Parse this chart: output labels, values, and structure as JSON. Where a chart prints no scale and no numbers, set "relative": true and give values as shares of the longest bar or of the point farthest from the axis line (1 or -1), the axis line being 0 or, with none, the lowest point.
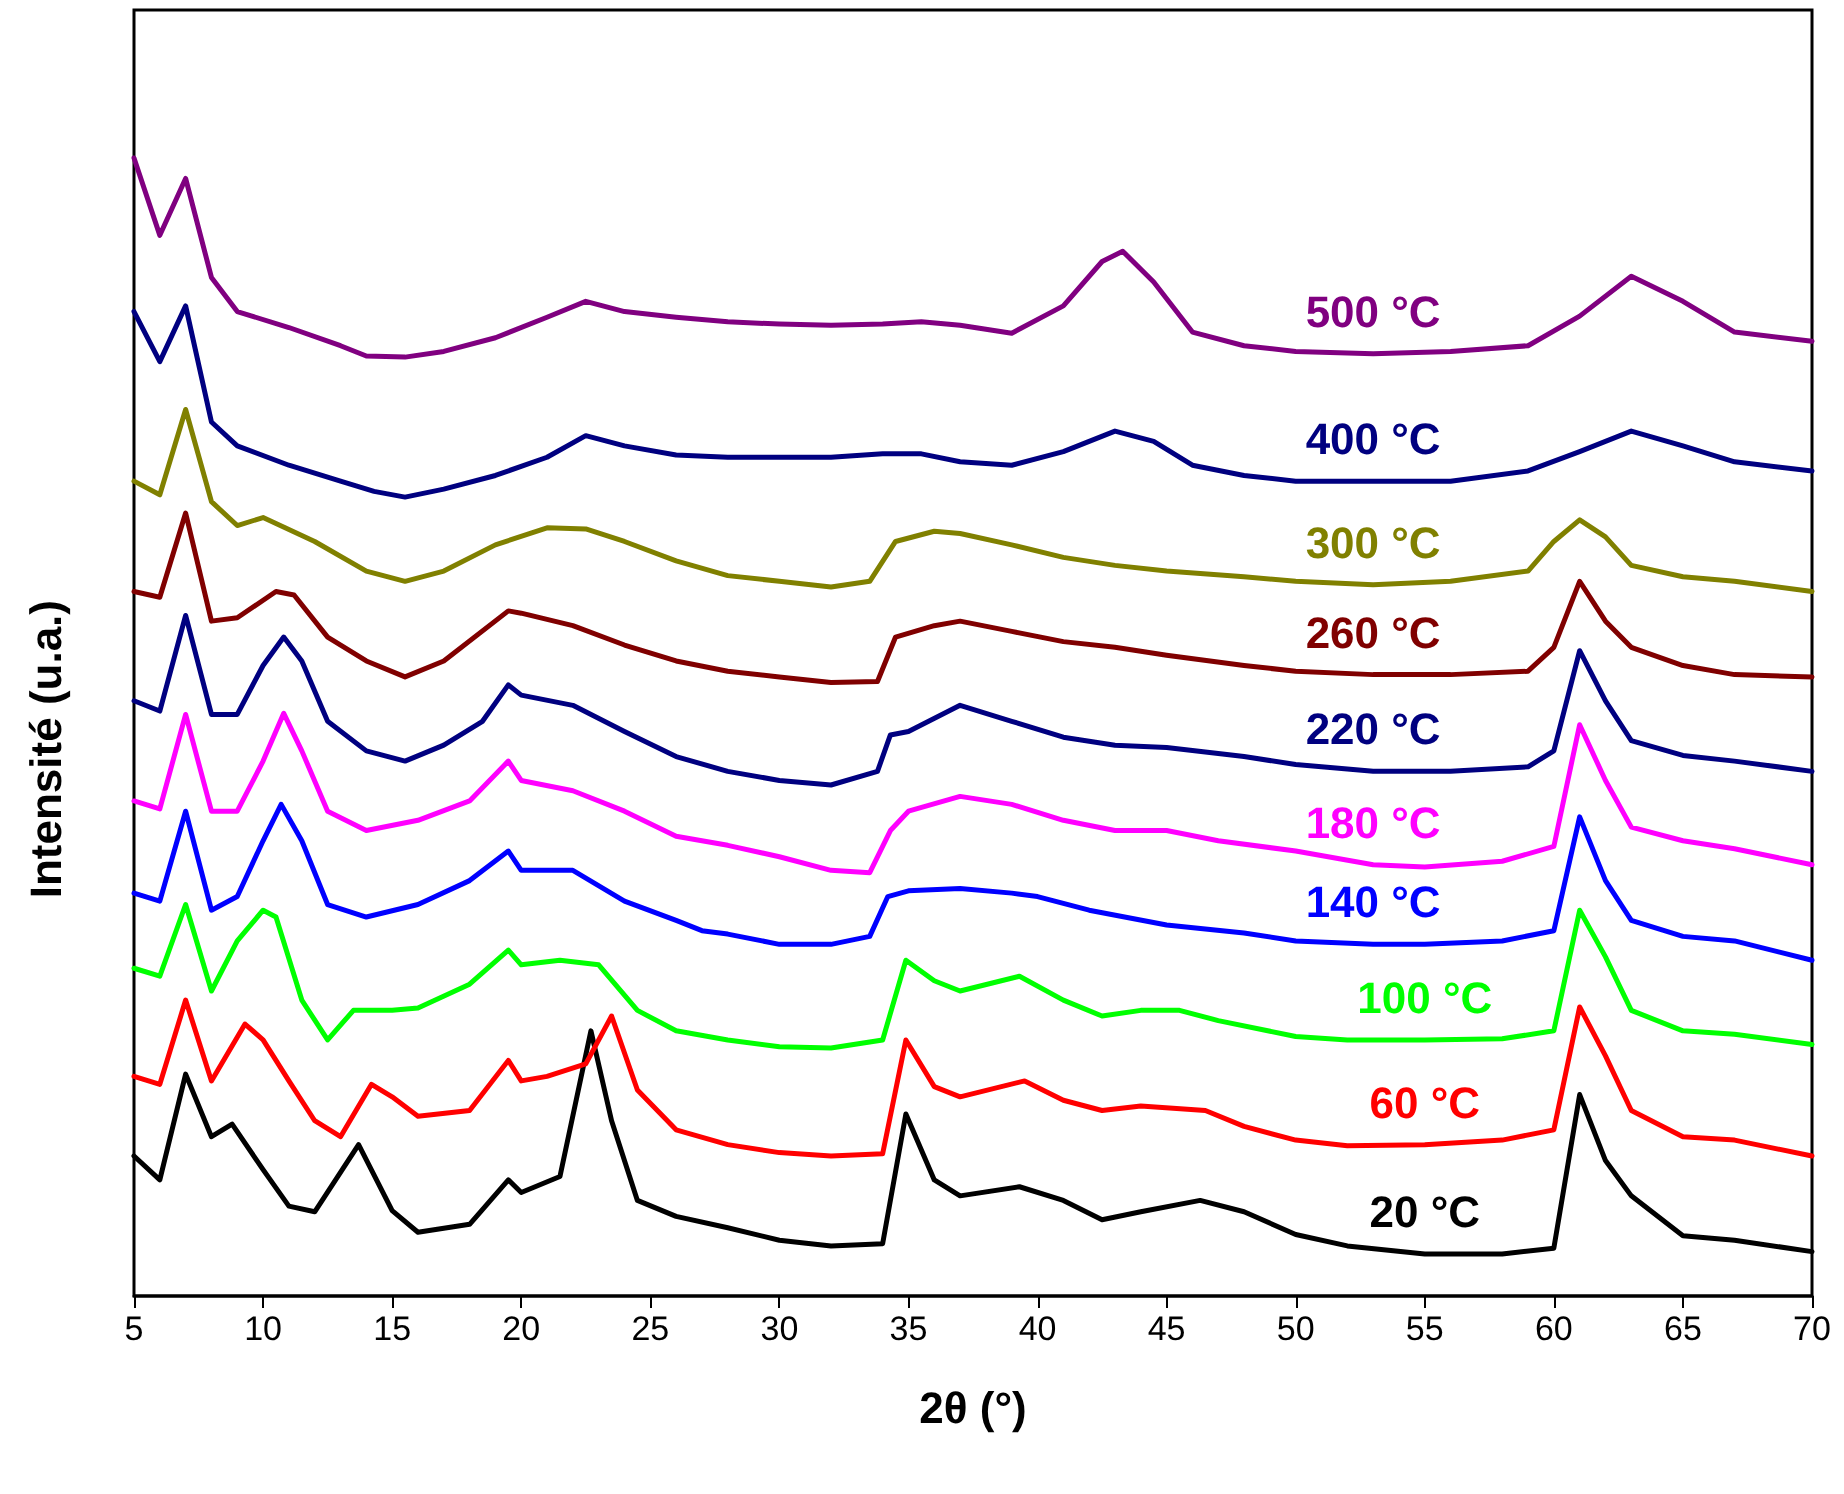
{
  "chart_data": {
    "type": "line",
    "relative": true,
    "xlabel": "2θ (°)",
    "ylabel": "Intensité (u.a.)",
    "xlim": [
      5,
      70
    ],
    "xticks": [
      5,
      10,
      15,
      20,
      25,
      30,
      35,
      40,
      45,
      50,
      55,
      60,
      65,
      70
    ],
    "legend": false,
    "grid": false,
    "marker": "none",
    "line_style": "solid",
    "series": [
      {
        "name": "20 °C",
        "color": "#000000",
        "x": [
          5,
          6,
          7,
          8,
          8.8,
          10,
          11,
          12,
          13.7,
          15,
          16,
          18,
          19.5,
          20,
          21.5,
          22.7,
          23.5,
          24.5,
          26,
          28,
          30,
          32,
          34,
          34.9,
          36,
          37,
          39.3,
          41,
          42.5,
          44,
          46.3,
          48,
          50,
          52,
          55,
          58,
          60,
          61,
          62,
          63,
          65,
          67,
          70
        ],
        "values": [
          0.123,
          0.102,
          0.195,
          0.14,
          0.151,
          0.111,
          0.079,
          0.074,
          0.133,
          0.075,
          0.056,
          0.063,
          0.102,
          0.091,
          0.105,
          0.233,
          0.154,
          0.084,
          0.07,
          0.06,
          0.049,
          0.044,
          0.046,
          0.16,
          0.102,
          0.088,
          0.096,
          0.084,
          0.067,
          0.074,
          0.084,
          0.074,
          0.054,
          0.044,
          0.037,
          0.037,
          0.042,
          0.177,
          0.119,
          0.088,
          0.053,
          0.049,
          0.039
        ]
      },
      {
        "name": "60 °C",
        "color": "#ff0000",
        "x": [
          5,
          6,
          7,
          8,
          9.3,
          10,
          11,
          12,
          13,
          14.2,
          15,
          16,
          18,
          19.5,
          20,
          21,
          22.5,
          23.5,
          24.5,
          26,
          28,
          30,
          32,
          34,
          34.9,
          36,
          37,
          39.5,
          41,
          42.5,
          44,
          46.5,
          48,
          50,
          52,
          55,
          58,
          60,
          61,
          62,
          63,
          65,
          67,
          70
        ],
        "values": [
          0.193,
          0.186,
          0.26,
          0.189,
          0.239,
          0.225,
          0.189,
          0.154,
          0.14,
          0.186,
          0.175,
          0.158,
          0.163,
          0.207,
          0.189,
          0.193,
          0.204,
          0.246,
          0.181,
          0.146,
          0.133,
          0.126,
          0.123,
          0.125,
          0.225,
          0.184,
          0.175,
          0.189,
          0.172,
          0.163,
          0.167,
          0.163,
          0.149,
          0.137,
          0.132,
          0.133,
          0.137,
          0.146,
          0.254,
          0.211,
          0.163,
          0.14,
          0.137,
          0.123
        ]
      },
      {
        "name": "100 °C",
        "color": "#00ff00",
        "x": [
          5,
          6,
          7,
          8,
          9,
          10,
          10.5,
          11.5,
          12.5,
          13.5,
          15,
          16,
          18,
          19.5,
          20,
          21.5,
          23,
          24.5,
          26,
          28,
          30,
          32,
          34,
          34.9,
          36,
          37,
          39.3,
          41,
          42.5,
          44,
          45.5,
          47,
          50,
          52,
          55,
          58,
          60,
          61,
          62,
          63,
          65,
          67,
          70
        ],
        "values": [
          0.288,
          0.281,
          0.344,
          0.268,
          0.312,
          0.339,
          0.333,
          0.26,
          0.225,
          0.251,
          0.251,
          0.253,
          0.274,
          0.304,
          0.291,
          0.295,
          0.291,
          0.251,
          0.233,
          0.225,
          0.219,
          0.218,
          0.225,
          0.295,
          0.277,
          0.268,
          0.281,
          0.26,
          0.246,
          0.251,
          0.251,
          0.242,
          0.228,
          0.225,
          0.225,
          0.226,
          0.233,
          0.339,
          0.298,
          0.251,
          0.233,
          0.23,
          0.221
        ]
      },
      {
        "name": "140 °C",
        "color": "#0000ff",
        "x": [
          5,
          6,
          7,
          8,
          9,
          10,
          10.7,
          11.5,
          12.5,
          14,
          16,
          18,
          19.5,
          20,
          22,
          24,
          26,
          27,
          28,
          30,
          32,
          33.5,
          34.2,
          35,
          37,
          39,
          40,
          42,
          45,
          48,
          50,
          53,
          55,
          58,
          60,
          61,
          62,
          63,
          65,
          67,
          70
        ],
        "values": [
          0.354,
          0.347,
          0.426,
          0.339,
          0.351,
          0.4,
          0.432,
          0.4,
          0.344,
          0.333,
          0.344,
          0.365,
          0.391,
          0.374,
          0.374,
          0.347,
          0.33,
          0.321,
          0.318,
          0.309,
          0.309,
          0.316,
          0.351,
          0.356,
          0.358,
          0.354,
          0.351,
          0.339,
          0.326,
          0.319,
          0.312,
          0.309,
          0.309,
          0.312,
          0.321,
          0.421,
          0.365,
          0.33,
          0.316,
          0.312,
          0.295
        ]
      },
      {
        "name": "180 °C",
        "color": "#ff00ff",
        "x": [
          5,
          6,
          7,
          8,
          9,
          10,
          10.8,
          11.5,
          12.5,
          14,
          16,
          18,
          19.5,
          20,
          22,
          24,
          26,
          28,
          30,
          32,
          33.5,
          34.3,
          35,
          37,
          39,
          41,
          43,
          45,
          47,
          50,
          53,
          55,
          58,
          60,
          61,
          62,
          63,
          65,
          67,
          70
        ],
        "values": [
          0.435,
          0.428,
          0.511,
          0.426,
          0.426,
          0.47,
          0.512,
          0.479,
          0.426,
          0.409,
          0.418,
          0.435,
          0.47,
          0.453,
          0.444,
          0.426,
          0.404,
          0.396,
          0.386,
          0.374,
          0.372,
          0.409,
          0.426,
          0.439,
          0.432,
          0.418,
          0.409,
          0.409,
          0.4,
          0.391,
          0.379,
          0.377,
          0.382,
          0.395,
          0.502,
          0.453,
          0.412,
          0.4,
          0.393,
          0.379
        ]
      },
      {
        "name": "220 °C",
        "color": "#000080",
        "x": [
          5,
          6,
          7,
          8,
          9,
          10,
          10.8,
          11.5,
          12.5,
          14,
          15.5,
          17,
          18.5,
          19.5,
          20,
          22,
          24,
          26,
          28,
          30,
          32,
          33.8,
          34.3,
          35,
          37,
          39,
          41,
          43,
          45,
          48,
          50,
          53,
          56,
          59,
          60,
          61,
          62,
          63,
          65,
          67,
          70
        ],
        "values": [
          0.523,
          0.514,
          0.598,
          0.511,
          0.511,
          0.554,
          0.579,
          0.558,
          0.505,
          0.479,
          0.47,
          0.484,
          0.505,
          0.537,
          0.528,
          0.519,
          0.496,
          0.474,
          0.461,
          0.453,
          0.449,
          0.461,
          0.493,
          0.496,
          0.519,
          0.505,
          0.491,
          0.484,
          0.482,
          0.474,
          0.467,
          0.461,
          0.461,
          0.465,
          0.479,
          0.567,
          0.523,
          0.488,
          0.475,
          0.47,
          0.461
        ]
      },
      {
        "name": "260 °C",
        "color": "#800000",
        "x": [
          5,
          6,
          7,
          8,
          9,
          10.5,
          11.2,
          12.5,
          14,
          15.5,
          17,
          19.5,
          20,
          22,
          24,
          26,
          28,
          30,
          32,
          33.8,
          34.5,
          36,
          37,
          39,
          41,
          43,
          45,
          48,
          50,
          53,
          56,
          59,
          60,
          61,
          62,
          63,
          65,
          67,
          70
        ],
        "values": [
          0.619,
          0.614,
          0.688,
          0.593,
          0.596,
          0.619,
          0.616,
          0.579,
          0.558,
          0.544,
          0.558,
          0.602,
          0.6,
          0.589,
          0.572,
          0.558,
          0.549,
          0.544,
          0.539,
          0.54,
          0.579,
          0.589,
          0.593,
          0.584,
          0.575,
          0.57,
          0.563,
          0.554,
          0.549,
          0.546,
          0.546,
          0.549,
          0.57,
          0.628,
          0.593,
          0.57,
          0.554,
          0.546,
          0.544
        ]
      },
      {
        "name": "300 °C",
        "color": "#808000",
        "x": [
          5,
          6,
          7,
          8,
          9,
          10,
          12,
          14,
          15.5,
          17,
          19,
          21,
          22.5,
          24,
          26,
          28,
          30,
          32,
          33.5,
          34.5,
          36,
          37,
          39,
          41,
          43,
          45,
          48,
          50,
          53,
          56,
          59,
          60,
          61,
          62,
          63,
          65,
          67,
          70
        ],
        "values": [
          0.716,
          0.704,
          0.779,
          0.698,
          0.677,
          0.684,
          0.663,
          0.637,
          0.628,
          0.637,
          0.66,
          0.675,
          0.674,
          0.663,
          0.646,
          0.633,
          0.628,
          0.623,
          0.628,
          0.663,
          0.672,
          0.67,
          0.66,
          0.649,
          0.642,
          0.637,
          0.632,
          0.628,
          0.625,
          0.628,
          0.637,
          0.663,
          0.682,
          0.667,
          0.642,
          0.632,
          0.628,
          0.619
        ]
      },
      {
        "name": "400 °C",
        "color": "#000080",
        "x": [
          5,
          6,
          7,
          8,
          9,
          11,
          13,
          14.3,
          15.5,
          17,
          19,
          21,
          22.5,
          24,
          26,
          28,
          30,
          32,
          34,
          35.5,
          37,
          39,
          41,
          43,
          44.5,
          46,
          48,
          50,
          53,
          56,
          59,
          61,
          63,
          65,
          67,
          70
        ],
        "values": [
          0.865,
          0.821,
          0.87,
          0.768,
          0.747,
          0.73,
          0.716,
          0.707,
          0.702,
          0.709,
          0.721,
          0.737,
          0.756,
          0.747,
          0.739,
          0.737,
          0.737,
          0.737,
          0.74,
          0.74,
          0.733,
          0.73,
          0.742,
          0.76,
          0.751,
          0.73,
          0.721,
          0.716,
          0.716,
          0.716,
          0.725,
          0.742,
          0.76,
          0.747,
          0.733,
          0.725
        ]
      },
      {
        "name": "500 °C",
        "color": "#800080",
        "x": [
          5,
          6,
          7,
          8,
          9,
          11,
          13,
          14,
          15.5,
          17,
          19,
          21,
          22.5,
          24,
          26,
          28,
          30,
          32,
          34,
          35.5,
          37,
          39,
          41,
          42.5,
          43.3,
          44.5,
          46,
          48,
          50,
          53,
          56,
          59,
          61,
          63,
          65,
          67,
          70
        ],
        "values": [
          1.0,
          0.932,
          0.982,
          0.895,
          0.865,
          0.851,
          0.835,
          0.826,
          0.825,
          0.83,
          0.842,
          0.86,
          0.874,
          0.865,
          0.86,
          0.856,
          0.854,
          0.853,
          0.854,
          0.856,
          0.853,
          0.846,
          0.87,
          0.909,
          0.918,
          0.891,
          0.847,
          0.835,
          0.83,
          0.828,
          0.83,
          0.835,
          0.861,
          0.896,
          0.874,
          0.847,
          0.839
        ]
      }
    ]
  }
}
